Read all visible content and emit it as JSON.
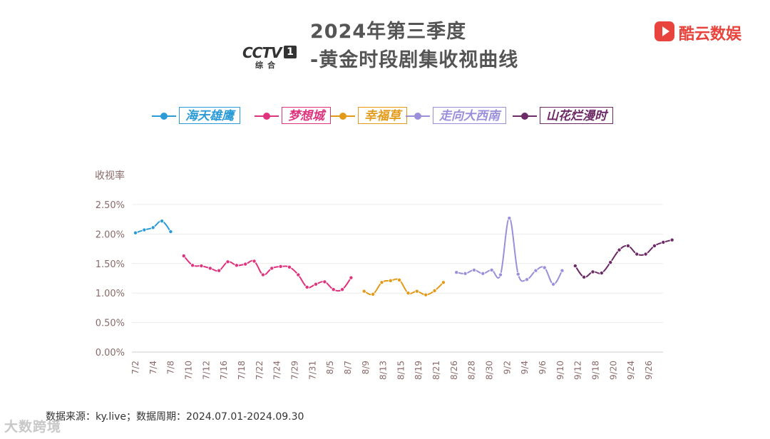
{
  "title_line1": "2024年第三季度",
  "title_line2": "-黄金时段剧集收视曲线",
  "cctv_logo": {
    "text": "CCTV",
    "num": "1",
    "sub": "综合"
  },
  "brand": "酷云数娱",
  "footer": "数据来源：ky.live；数据周期：2024.07.01-2024.09.30",
  "watermark": "大数跨境",
  "chart_data": {
    "type": "line",
    "ylabel": "收视率",
    "ylim": [
      0,
      2.5
    ],
    "yticks": [
      "0.00%",
      "0.50%",
      "1.00%",
      "1.50%",
      "2.00%",
      "2.50%"
    ],
    "grid": true,
    "legend_position": "top",
    "xticks": [
      "7/2",
      "7/4",
      "7/8",
      "7/10",
      "7/12",
      "7/16",
      "7/18",
      "7/22",
      "7/24",
      "7/29",
      "7/31",
      "8/5",
      "8/7",
      "8/9",
      "8/13",
      "8/15",
      "8/19",
      "8/21",
      "8/26",
      "8/28",
      "8/30",
      "9/2",
      "9/4",
      "9/6",
      "9/10",
      "9/12",
      "9/18",
      "9/20",
      "9/24",
      "9/26"
    ],
    "series": [
      {
        "name": "海天雄鹰",
        "color": "#2a9bd6",
        "values": [
          2.02,
          2.07,
          2.11,
          2.22,
          2.04
        ]
      },
      {
        "name": "梦想城",
        "color": "#e0337e",
        "values": [
          1.63,
          1.47,
          1.46,
          1.42,
          1.38,
          1.53,
          1.47,
          1.49,
          1.54,
          1.31,
          1.42,
          1.45,
          1.44,
          1.31,
          1.1,
          1.15,
          1.19,
          1.06,
          1.06,
          1.26
        ]
      },
      {
        "name": "幸福草",
        "color": "#e39a18",
        "values": [
          1.03,
          0.98,
          1.18,
          1.21,
          1.22,
          1.0,
          1.03,
          0.97,
          1.04,
          1.18
        ]
      },
      {
        "name": "走向大西南",
        "color": "#9b8fdc",
        "values": [
          1.35,
          1.33,
          1.39,
          1.33,
          1.39,
          1.31,
          2.27,
          1.32,
          1.23,
          1.38,
          1.43,
          1.15,
          1.38
        ]
      },
      {
        "name": "山花烂漫时",
        "color": "#6d2a66",
        "values": [
          1.46,
          1.27,
          1.36,
          1.34,
          1.52,
          1.73,
          1.8,
          1.66,
          1.66,
          1.8,
          1.86,
          1.9
        ]
      }
    ]
  }
}
